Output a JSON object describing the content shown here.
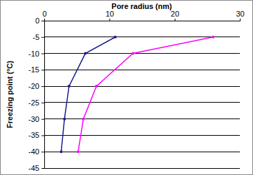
{
  "chart_data": {
    "type": "line",
    "title": "Pore radius (nm)",
    "y_label": "Freezing point (°C)",
    "series": [
      {
        "color": "#1a1a8c",
        "marker": "circle",
        "x": [
          10.9,
          6.3,
          3.8,
          3.1,
          2.6
        ],
        "values": [
          -5,
          -10,
          -20,
          -30,
          -40
        ]
      },
      {
        "color": "#ff00ff",
        "marker": "circle",
        "x": [
          25.9,
          13.6,
          8.0,
          6.0,
          5.2
        ],
        "values": [
          -5,
          -10,
          -20,
          -30,
          -40
        ]
      }
    ],
    "xlim": [
      0,
      30
    ],
    "xticks": [
      0,
      10,
      20,
      30
    ],
    "ylim": [
      -45,
      0
    ],
    "yticks": [
      0,
      -5,
      -10,
      -15,
      -20,
      -25,
      -30,
      -35,
      -40,
      -45
    ],
    "grid": true
  }
}
